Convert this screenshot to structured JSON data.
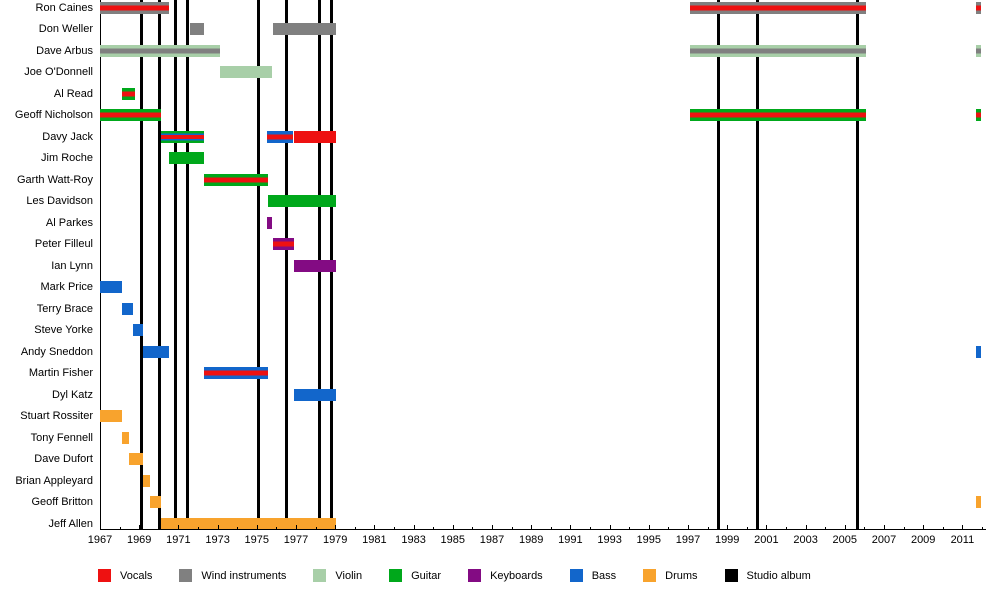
{
  "chart_data": {
    "type": "bar",
    "subtype": "band-members-gantt-timeline",
    "title": "",
    "xlabel": "",
    "ylabel": "",
    "grid": false,
    "legend_position": "bottom",
    "x_axis": {
      "min_year": 1967,
      "max_year": 2012.3,
      "tick_every_years": 1,
      "labeled_years": [
        1967,
        1969,
        1971,
        1973,
        1975,
        1977,
        1979,
        1981,
        1983,
        1985,
        1987,
        1989,
        1991,
        1993,
        1995,
        1997,
        1999,
        2001,
        2003,
        2005,
        2007,
        2009,
        2011
      ]
    },
    "roles_legend": [
      {
        "label": "Vocals",
        "role": "vocals",
        "color": "#ee1111"
      },
      {
        "label": "Wind instruments",
        "role": "wind",
        "color": "#808080"
      },
      {
        "label": "Violin",
        "role": "violin",
        "color": "#a8cfa8"
      },
      {
        "label": "Guitar",
        "role": "guitar",
        "color": "#00a81b"
      },
      {
        "label": "Keyboards",
        "role": "keyboards",
        "color": "#830b83"
      },
      {
        "label": "Bass",
        "role": "bass",
        "color": "#1266cb"
      },
      {
        "label": "Drums",
        "role": "drums",
        "color": "#f8a32d"
      },
      {
        "label": "Studio album",
        "role": "album",
        "color": "#000000"
      }
    ],
    "albums_years": [
      1969.1,
      1970.05,
      1970.85,
      1971.45,
      1975.1,
      1976.5,
      1978.2,
      1978.8,
      1998.55,
      2000.55,
      2005.65
    ],
    "members": [
      {
        "name": "Ron Caines",
        "segments": [
          {
            "start": 1967.0,
            "end": 1970.5,
            "stripes": [
              "wind",
              "vocals",
              "wind"
            ]
          },
          {
            "start": 1997.1,
            "end": 2006.1,
            "stripes": [
              "wind",
              "vocals",
              "wind"
            ]
          },
          {
            "start": 2011.7,
            "end": 2011.95,
            "stripes": [
              "wind",
              "vocals",
              "wind"
            ]
          }
        ]
      },
      {
        "name": "Don Weller",
        "segments": [
          {
            "start": 1971.6,
            "end": 1972.3,
            "stripes": [
              "wind"
            ]
          },
          {
            "start": 1975.8,
            "end": 1979.05,
            "stripes": [
              "wind"
            ]
          }
        ]
      },
      {
        "name": "Dave Arbus",
        "segments": [
          {
            "start": 1967.0,
            "end": 1973.1,
            "stripes": [
              "violin",
              "wind",
              "violin"
            ]
          },
          {
            "start": 1997.1,
            "end": 2006.1,
            "stripes": [
              "violin",
              "wind",
              "violin"
            ]
          },
          {
            "start": 2011.7,
            "end": 2011.95,
            "stripes": [
              "violin",
              "wind",
              "violin"
            ]
          }
        ]
      },
      {
        "name": "Joe O'Donnell",
        "segments": [
          {
            "start": 1973.1,
            "end": 1975.8,
            "stripes": [
              "violin"
            ]
          }
        ]
      },
      {
        "name": "Al Read",
        "segments": [
          {
            "start": 1968.1,
            "end": 1968.8,
            "stripes": [
              "guitar",
              "vocals",
              "guitar"
            ]
          }
        ]
      },
      {
        "name": "Geoff Nicholson",
        "segments": [
          {
            "start": 1967.0,
            "end": 1970.1,
            "stripes": [
              "guitar",
              "vocals",
              "guitar"
            ]
          },
          {
            "start": 1997.1,
            "end": 2006.1,
            "stripes": [
              "guitar",
              "vocals",
              "guitar"
            ]
          },
          {
            "start": 2011.7,
            "end": 2011.95,
            "stripes": [
              "guitar",
              "vocals",
              "guitar"
            ]
          }
        ]
      },
      {
        "name": "Davy Jack",
        "segments": [
          {
            "start": 1970.1,
            "end": 1972.3,
            "stripes": [
              "guitar",
              "bass",
              "vocals",
              "bass",
              "guitar"
            ]
          },
          {
            "start": 1975.5,
            "end": 1976.87,
            "stripes": [
              "bass",
              "vocals",
              "bass"
            ]
          },
          {
            "start": 1976.87,
            "end": 1979.05,
            "stripes": [
              "vocals"
            ]
          }
        ]
      },
      {
        "name": "Jim Roche",
        "segments": [
          {
            "start": 1970.5,
            "end": 1972.3,
            "stripes": [
              "guitar"
            ]
          }
        ]
      },
      {
        "name": "Garth Watt-Roy",
        "segments": [
          {
            "start": 1972.3,
            "end": 1975.55,
            "stripes": [
              "guitar",
              "vocals",
              "guitar"
            ]
          }
        ]
      },
      {
        "name": "Les Davidson",
        "segments": [
          {
            "start": 1975.55,
            "end": 1979.05,
            "stripes": [
              "guitar"
            ]
          }
        ]
      },
      {
        "name": "Al Parkes",
        "segments": [
          {
            "start": 1975.5,
            "end": 1975.8,
            "stripes": [
              "keyboards"
            ]
          }
        ]
      },
      {
        "name": "Peter Filleul",
        "segments": [
          {
            "start": 1975.8,
            "end": 1976.9,
            "stripes": [
              "keyboards",
              "vocals",
              "keyboards"
            ]
          }
        ]
      },
      {
        "name": "Ian Lynn",
        "segments": [
          {
            "start": 1976.87,
            "end": 1979.05,
            "stripes": [
              "keyboards"
            ]
          }
        ]
      },
      {
        "name": "Mark Price",
        "segments": [
          {
            "start": 1967.0,
            "end": 1968.1,
            "stripes": [
              "bass"
            ]
          }
        ]
      },
      {
        "name": "Terry Brace",
        "segments": [
          {
            "start": 1968.1,
            "end": 1968.7,
            "stripes": [
              "bass"
            ]
          }
        ]
      },
      {
        "name": "Steve Yorke",
        "segments": [
          {
            "start": 1968.7,
            "end": 1969.2,
            "stripes": [
              "bass"
            ]
          }
        ]
      },
      {
        "name": "Andy Sneddon",
        "segments": [
          {
            "start": 1969.2,
            "end": 1970.5,
            "stripes": [
              "bass"
            ]
          },
          {
            "start": 2011.7,
            "end": 2011.95,
            "stripes": [
              "bass"
            ]
          }
        ]
      },
      {
        "name": "Martin Fisher",
        "segments": [
          {
            "start": 1972.3,
            "end": 1975.55,
            "stripes": [
              "bass",
              "vocals",
              "bass"
            ]
          }
        ]
      },
      {
        "name": "Dyl Katz",
        "segments": [
          {
            "start": 1976.87,
            "end": 1979.05,
            "stripes": [
              "bass"
            ]
          }
        ]
      },
      {
        "name": "Stuart Rossiter",
        "segments": [
          {
            "start": 1967.0,
            "end": 1968.1,
            "stripes": [
              "drums"
            ]
          }
        ]
      },
      {
        "name": "Tony Fennell",
        "segments": [
          {
            "start": 1968.1,
            "end": 1968.5,
            "stripes": [
              "drums"
            ]
          }
        ]
      },
      {
        "name": "Dave Dufort",
        "segments": [
          {
            "start": 1968.5,
            "end": 1969.2,
            "stripes": [
              "drums"
            ]
          }
        ]
      },
      {
        "name": "Brian Appleyard",
        "segments": [
          {
            "start": 1969.2,
            "end": 1969.55,
            "stripes": [
              "drums"
            ]
          }
        ]
      },
      {
        "name": "Geoff Britton",
        "segments": [
          {
            "start": 1969.55,
            "end": 1970.1,
            "stripes": [
              "drums"
            ]
          },
          {
            "start": 2011.7,
            "end": 2011.95,
            "stripes": [
              "drums"
            ]
          }
        ]
      },
      {
        "name": "Jeff Allen",
        "segments": [
          {
            "start": 1970.1,
            "end": 1979.05,
            "stripes": [
              "drums"
            ]
          }
        ]
      }
    ]
  }
}
